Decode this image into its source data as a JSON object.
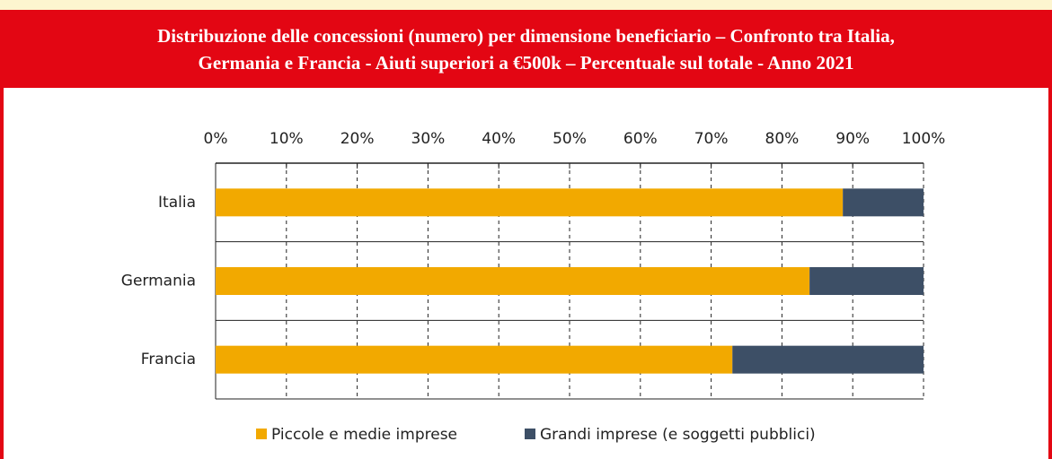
{
  "chart_data": {
    "type": "stacked_barh",
    "title": [
      "Distribuzione delle concessioni (numero) per dimensione beneficiario – Confronto tra Italia,",
      "Germania e Francia - Aiuti superiori a €500k – Percentuale sul totale - Anno 2021"
    ],
    "categories": [
      "Italia",
      "Germania",
      "Francia"
    ],
    "series": [
      {
        "name": "Piccole e medie imprese",
        "color": "#f2a900",
        "values": [
          88.6,
          83.9,
          73.0
        ]
      },
      {
        "name": "Grandi imprese (e soggetti pubblici)",
        "color": "#3d4f66",
        "values": [
          11.4,
          16.1,
          27.0
        ]
      }
    ],
    "xlim": [
      0,
      100
    ],
    "xticks": [
      {
        "value": 0,
        "label": "0%"
      },
      {
        "value": 10,
        "label": "10%"
      },
      {
        "value": 20,
        "label": "20%"
      },
      {
        "value": 30,
        "label": "30%"
      },
      {
        "value": 40,
        "label": "40%"
      },
      {
        "value": 50,
        "label": "50%"
      },
      {
        "value": 60,
        "label": "60%"
      },
      {
        "value": 70,
        "label": "70%"
      },
      {
        "value": 80,
        "label": "80%"
      },
      {
        "value": 90,
        "label": "90%"
      },
      {
        "value": 100,
        "label": "100%"
      }
    ],
    "grid": true
  }
}
